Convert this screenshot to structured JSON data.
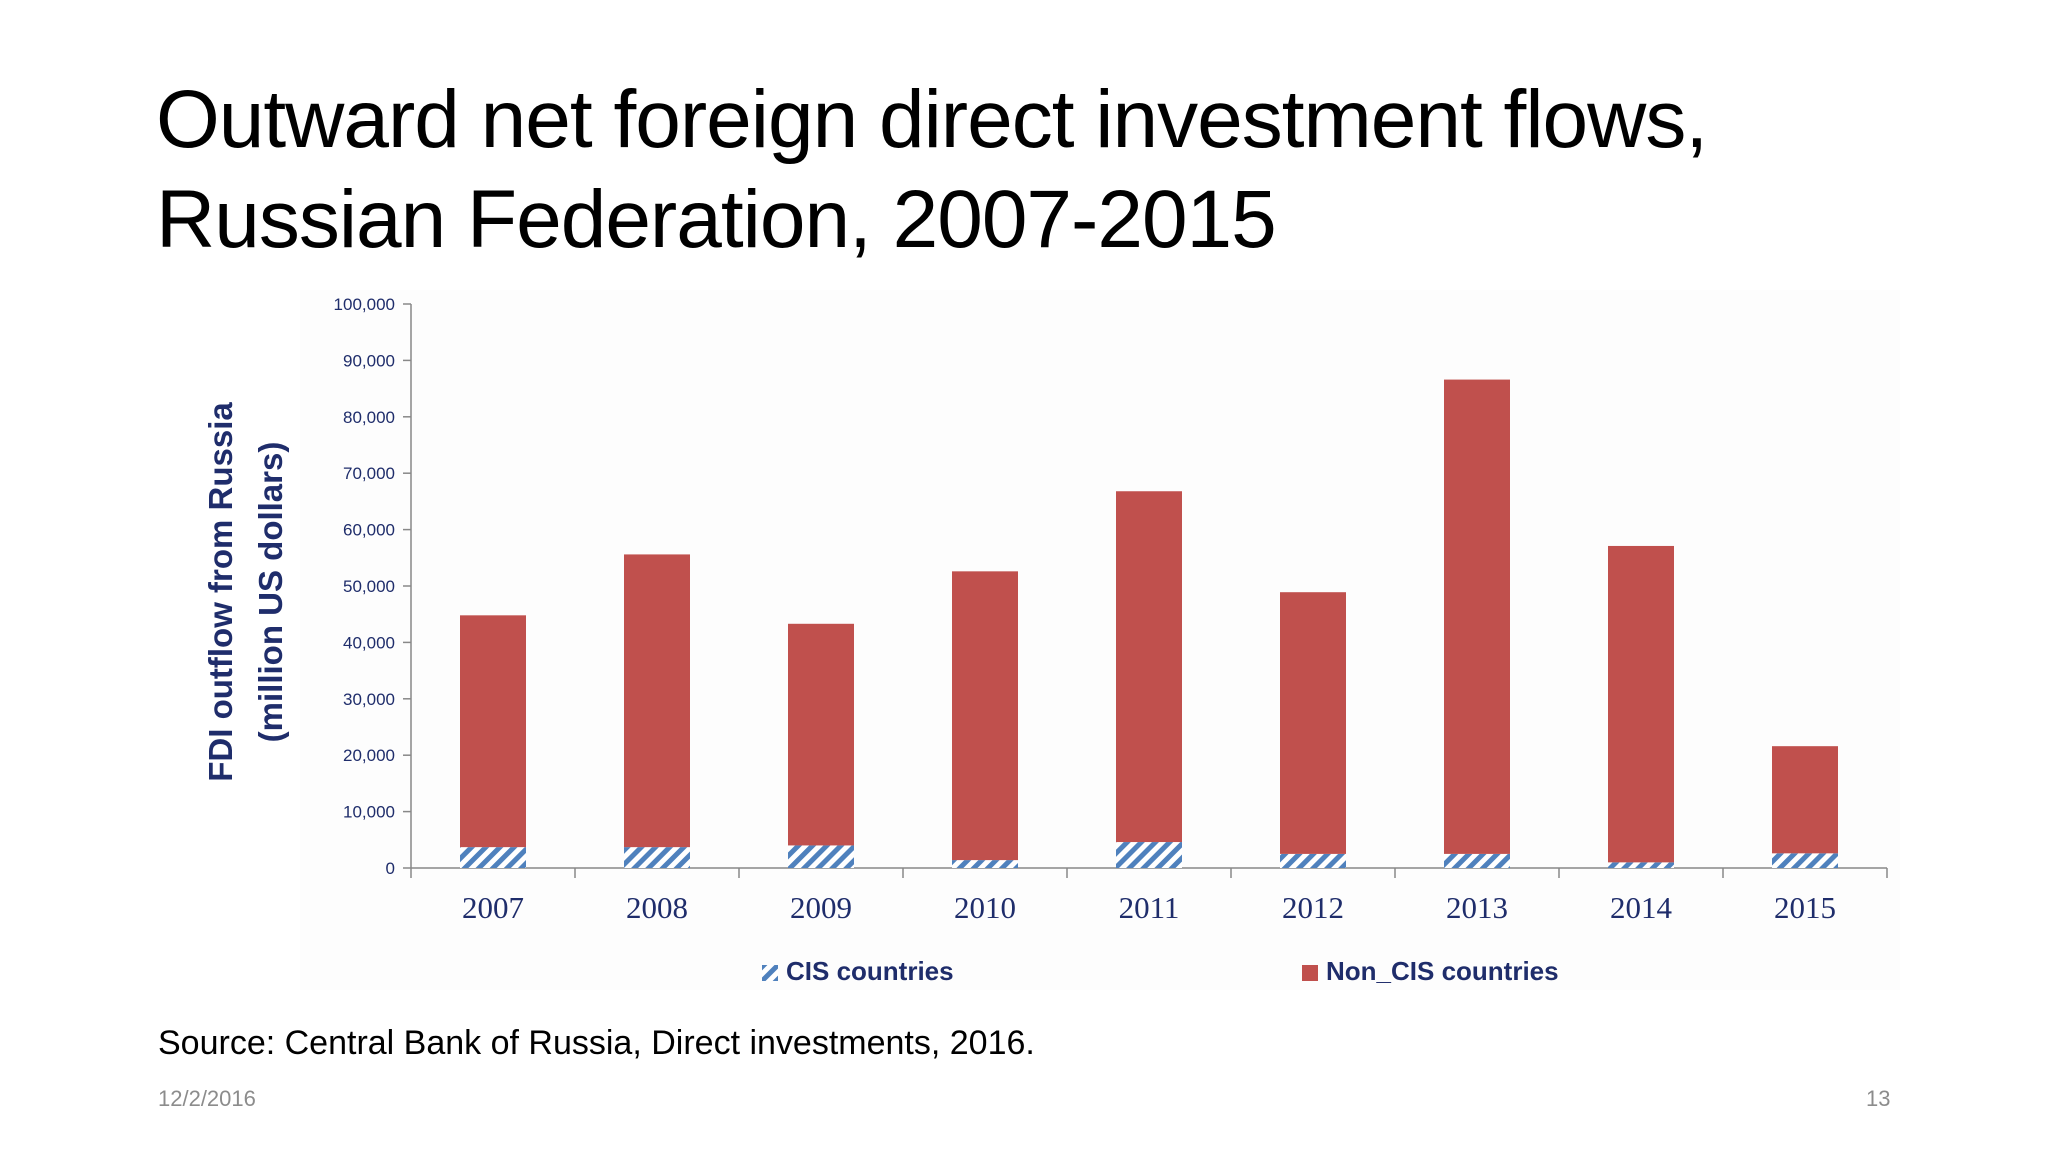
{
  "slide": {
    "title_line1": "Outward net foreign direct investment flows,",
    "title_line2": "Russian Federation, 2007-2015",
    "source": "Source: Central Bank of Russia, Direct investments, 2016.",
    "date": "12/2/2016",
    "page_number": "13"
  },
  "chart_data": {
    "type": "bar",
    "stacked": true,
    "title": "",
    "ylabel_line1": "FDI outflow from Russia",
    "ylabel_line2": "(million US dollars)",
    "xlabel": "",
    "ylim": [
      0,
      100000
    ],
    "yticks": [
      0,
      10000,
      20000,
      30000,
      40000,
      50000,
      60000,
      70000,
      80000,
      90000,
      100000
    ],
    "ytick_labels": [
      "0",
      "10,000",
      "20,000",
      "30,000",
      "40,000",
      "50,000",
      "60,000",
      "70,000",
      "80,000",
      "90,000",
      "100,000"
    ],
    "categories": [
      "2007",
      "2008",
      "2009",
      "2010",
      "2011",
      "2012",
      "2013",
      "2014",
      "2015"
    ],
    "series": [
      {
        "name": "CIS countries",
        "color": "#4f81bd",
        "pattern": "diagonal-hatch",
        "values": [
          3700,
          3700,
          4000,
          1400,
          4600,
          2500,
          2500,
          1000,
          2600
        ]
      },
      {
        "name": "Non_CIS countries",
        "color": "#c0504d",
        "pattern": "solid",
        "values": [
          41100,
          51900,
          39300,
          51200,
          62200,
          46400,
          84100,
          56100,
          19000
        ]
      }
    ],
    "legend_position": "bottom",
    "grid": false,
    "axis_label_color": "#1f2d6b"
  }
}
